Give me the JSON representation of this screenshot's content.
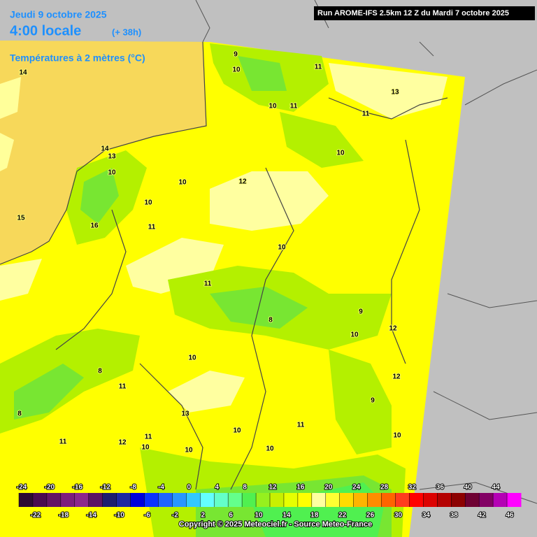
{
  "header": {
    "date": "Jeudi 9 octobre 2025",
    "time": "4:00 locale",
    "lead": "(+ 38h)",
    "parameter": "Températures à 2 mètres (°C)",
    "run": "Run AROME-IFS 2.5km 12 Z du Mardi 7 octobre 2025"
  },
  "map": {
    "contour_labels": [
      14,
      15,
      9,
      10,
      11,
      10,
      11,
      13,
      11,
      10,
      14,
      13,
      10,
      10,
      12,
      10,
      11,
      16,
      10,
      11,
      8,
      9,
      10,
      12,
      10,
      8,
      11,
      12,
      13,
      9,
      11,
      10,
      10,
      11,
      12,
      10,
      10,
      10,
      11,
      8
    ]
  },
  "colorbar": {
    "ticks": [
      -24,
      -22,
      -20,
      -18,
      -16,
      -14,
      -12,
      -10,
      -8,
      -6,
      -4,
      -2,
      0,
      2,
      4,
      6,
      8,
      10,
      12,
      14,
      16,
      18,
      20,
      22,
      24,
      26,
      28,
      30,
      32,
      34,
      36,
      38,
      40,
      42,
      44,
      46
    ],
    "colors": [
      "#2d0a32",
      "#4b0a50",
      "#641464",
      "#7d1e7d",
      "#8c288c",
      "#5a1464",
      "#1e1e6e",
      "#1e28a0",
      "#0000dc",
      "#0a32ff",
      "#1e64ff",
      "#2896ff",
      "#32c8ff",
      "#64ffff",
      "#64ffc8",
      "#64ff8c",
      "#50f050",
      "#96f01e",
      "#c8f000",
      "#e6ff00",
      "#ffff00",
      "#ffffa0",
      "#ffff32",
      "#ffdc00",
      "#ffb400",
      "#ff8c00",
      "#ff6400",
      "#ff3c1e",
      "#ff0000",
      "#dc0000",
      "#b40000",
      "#8c0000",
      "#6e0032",
      "#820064",
      "#b400b4",
      "#ff00ff"
    ]
  },
  "footer": {
    "copyright": "Copyright © 2025 Meteociel.fr - Source Meteo-France"
  }
}
